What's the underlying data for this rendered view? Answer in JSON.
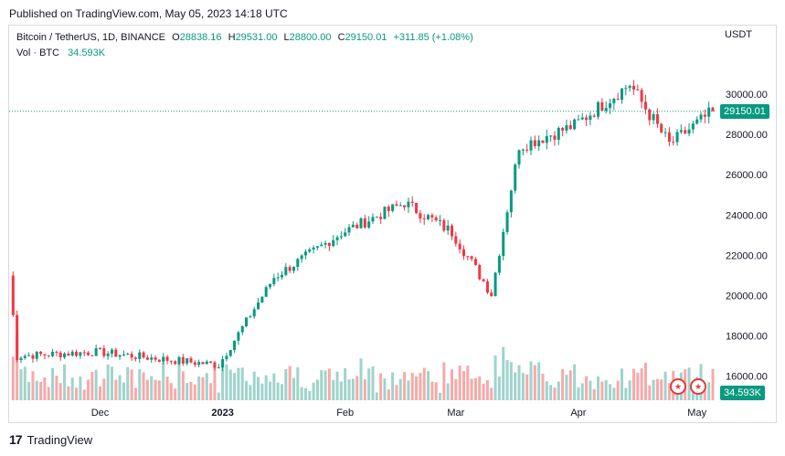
{
  "header": {
    "published": "Published on TradingView.com, May 05, 2023 14:18 UTC"
  },
  "legend": {
    "symbol": "Bitcoin / TetherUS, 1D, BINANCE",
    "o_label": "O",
    "o": "28838.16",
    "h_label": "H",
    "h": "29531.00",
    "l_label": "L",
    "l": "28800.00",
    "c_label": "C",
    "c": "29150.01",
    "change": "+311.85 (+1.08%)",
    "vol_label": "Vol · BTC",
    "vol": "34.593K"
  },
  "footer": {
    "brand": "TradingView"
  },
  "colors": {
    "up": "#089981",
    "down": "#f23645",
    "up_vol": "#9fd3cb",
    "down_vol": "#f7a9a9"
  },
  "events": {
    "icon": "us-flag-icon"
  },
  "chart_data": {
    "type": "candlestick",
    "title": "Bitcoin / TetherUS, 1D, BINANCE",
    "currency": "USDT",
    "ylim": [
      14800,
      31500
    ],
    "y_ticks": [
      "30000.00",
      "28000.00",
      "26000.00",
      "24000.00",
      "22000.00",
      "20000.00",
      "18000.00",
      "16000.00"
    ],
    "y_tick_values": [
      30000,
      28000,
      26000,
      24000,
      22000,
      20000,
      18000,
      16000
    ],
    "x_ticks": [
      {
        "label": "Dec",
        "date": "2022-12-01"
      },
      {
        "label": "2023",
        "date": "2023-01-01"
      },
      {
        "label": "Feb",
        "date": "2023-02-01"
      },
      {
        "label": "Mar",
        "date": "2023-03-01"
      },
      {
        "label": "Apr",
        "date": "2023-04-01"
      },
      {
        "label": "May",
        "date": "2023-05-01"
      }
    ],
    "last_price": "29150.01",
    "last_price_value": 29150.01,
    "volume_label": "34.593K",
    "date_range": [
      "2022-11-08",
      "2023-05-05"
    ],
    "close_by_month": [
      {
        "period": "2022-11-08",
        "close": 21000
      },
      {
        "period": "2022-11-10",
        "close": 17000
      },
      {
        "period": "2022-11-30",
        "close": 17200
      },
      {
        "period": "2022-12-31",
        "close": 16550
      },
      {
        "period": "2023-01-14",
        "close": 20900
      },
      {
        "period": "2023-01-31",
        "close": 23100
      },
      {
        "period": "2023-02-16",
        "close": 24600
      },
      {
        "period": "2023-02-28",
        "close": 23150
      },
      {
        "period": "2023-03-10",
        "close": 20100
      },
      {
        "period": "2023-03-17",
        "close": 27400
      },
      {
        "period": "2023-03-31",
        "close": 28450
      },
      {
        "period": "2023-04-14",
        "close": 30500
      },
      {
        "period": "2023-04-24",
        "close": 27500
      },
      {
        "period": "2023-05-05",
        "close": 29150
      }
    ]
  }
}
